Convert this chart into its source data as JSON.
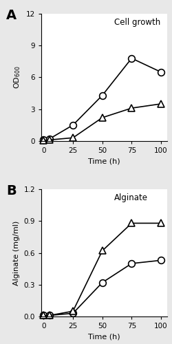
{
  "panel_A": {
    "title": "Cell growth",
    "xlabel": "Time (h)",
    "ylabel": "OD$_{600}$",
    "label": "A",
    "wt_circles": {
      "x": [
        0,
        5,
        25,
        50,
        75,
        100
      ],
      "y": [
        0.1,
        0.2,
        1.5,
        4.3,
        7.8,
        6.5
      ]
    },
    "mutant_triangles": {
      "x": [
        0,
        5,
        25,
        50,
        75,
        100
      ],
      "y": [
        0.05,
        0.1,
        0.3,
        2.2,
        3.1,
        3.5
      ]
    },
    "ylim": [
      0,
      12
    ],
    "yticks": [
      0,
      3,
      6,
      9,
      12
    ],
    "xlim": [
      -2,
      105
    ],
    "xticks": [
      0,
      25,
      50,
      75,
      100
    ]
  },
  "panel_B": {
    "title": "Alginate",
    "xlabel": "Time (h)",
    "ylabel": "Alginate (mg/ml)",
    "label": "B",
    "wt_circles": {
      "x": [
        0,
        5,
        25,
        50,
        75,
        100
      ],
      "y": [
        0.01,
        0.01,
        0.03,
        0.32,
        0.5,
        0.53
      ]
    },
    "mutant_triangles": {
      "x": [
        0,
        5,
        25,
        50,
        75,
        100
      ],
      "y": [
        0.01,
        0.01,
        0.05,
        0.62,
        0.88,
        0.88
      ]
    },
    "ylim": [
      0,
      1.2
    ],
    "yticks": [
      0.0,
      0.3,
      0.6,
      0.9,
      1.2
    ],
    "xlim": [
      -2,
      105
    ],
    "xticks": [
      0,
      25,
      50,
      75,
      100
    ]
  },
  "line_color": "#000000",
  "marker_size": 7,
  "line_width": 1.2,
  "bg_color": "#ffffff",
  "fig_facecolor": "#e8e8e8",
  "label_fontsize": 14,
  "title_fontsize": 8.5,
  "tick_fontsize": 7.5,
  "axis_label_fontsize": 8
}
